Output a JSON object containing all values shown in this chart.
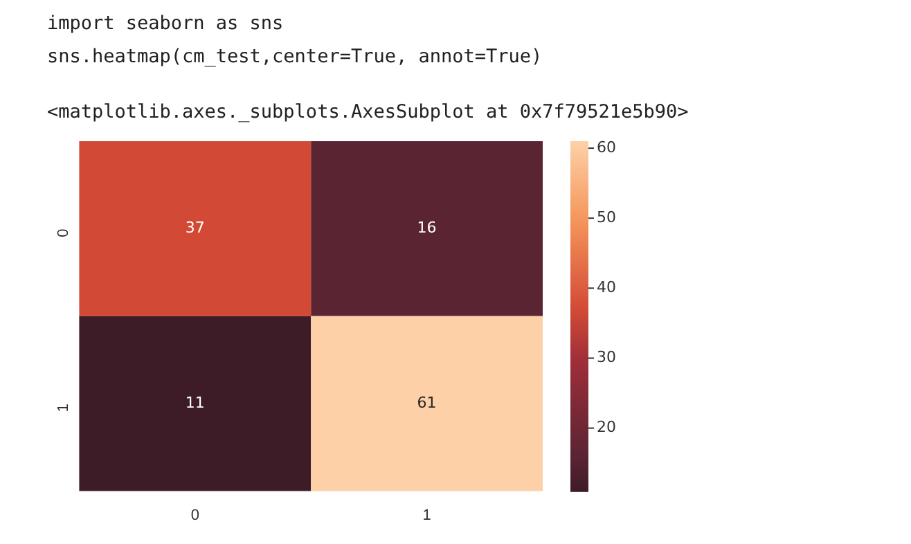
{
  "chart_data": {
    "type": "heatmap",
    "annotations": [
      "import seaborn as sns",
      "sns.heatmap(cm_test,center=True, annot=True)",
      "<matplotlib.axes._subplots.AxesSubplot at 0x7f79521e5b90>"
    ],
    "categories": [
      "0",
      "1"
    ],
    "y_categories": [
      "0",
      "1"
    ],
    "cells": [
      [
        37,
        16
      ],
      [
        11,
        61
      ]
    ],
    "clim": [
      11,
      61
    ],
    "cticks": [
      20,
      30,
      40,
      50,
      60
    ],
    "data_labels": true
  }
}
